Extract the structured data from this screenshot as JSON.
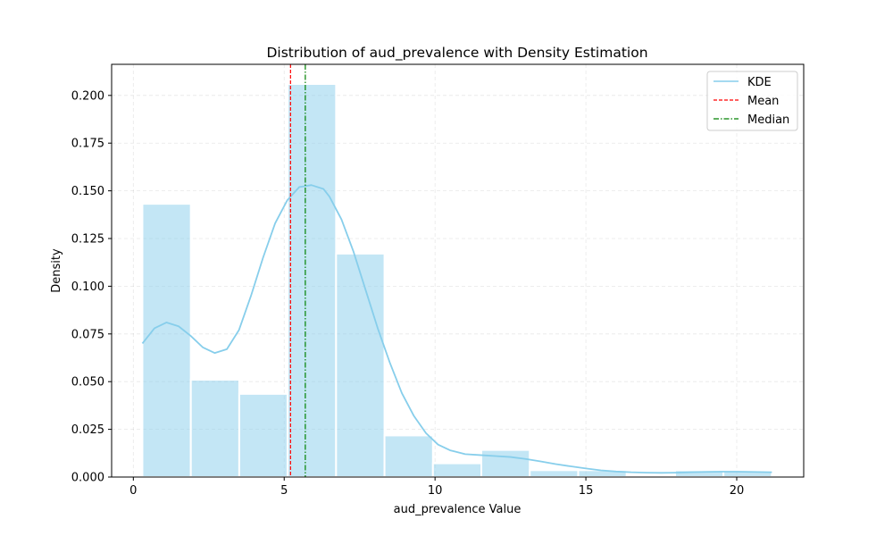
{
  "chart_data": {
    "type": "bar",
    "title": "Distribution of aud_prevalence with Density Estimation",
    "xlabel": "aud_prevalence Value",
    "ylabel": "Density",
    "xlim": [
      -0.72,
      22.22
    ],
    "ylim": [
      0,
      0.2163
    ],
    "xticks": [
      0,
      5,
      10,
      15,
      20
    ],
    "xtick_labels": [
      "0",
      "5",
      "10",
      "15",
      "20"
    ],
    "yticks": [
      0.0,
      0.025,
      0.05,
      0.075,
      0.1,
      0.125,
      0.15,
      0.175,
      0.2
    ],
    "ytick_labels": [
      "0.000",
      "0.025",
      "0.050",
      "0.075",
      "0.100",
      "0.125",
      "0.150",
      "0.175",
      "0.200"
    ],
    "grid": true,
    "legend_position": "upper-right",
    "histogram": {
      "bin_edges": [
        0.3,
        1.905,
        3.51,
        5.115,
        6.72,
        8.325,
        9.93,
        11.535,
        13.14,
        14.745,
        16.35,
        17.955,
        19.56,
        21.165
      ],
      "densities": [
        0.1432,
        0.051,
        0.0436,
        0.206,
        0.1171,
        0.0218,
        0.0072,
        0.0142,
        0.0036,
        0.0036,
        0.0,
        0.0036,
        0.0032
      ],
      "color": "#87ceeb"
    },
    "series": [
      {
        "name": "KDE",
        "type": "line",
        "color": "#87ceeb",
        "x": [
          0.3,
          0.7,
          1.1,
          1.5,
          1.9,
          2.3,
          2.7,
          3.1,
          3.5,
          3.9,
          4.3,
          4.7,
          5.1,
          5.5,
          5.9,
          6.3,
          6.5,
          6.9,
          7.3,
          7.7,
          8.1,
          8.5,
          8.9,
          9.3,
          9.7,
          10.1,
          10.5,
          11.0,
          11.5,
          12.0,
          12.5,
          13.0,
          13.5,
          14.0,
          14.5,
          15.0,
          15.5,
          16.0,
          16.5,
          17.0,
          17.5,
          18.0,
          18.5,
          19.0,
          19.5,
          20.0,
          20.5,
          21.165
        ],
        "y": [
          0.07,
          0.078,
          0.081,
          0.079,
          0.074,
          0.068,
          0.065,
          0.067,
          0.077,
          0.095,
          0.115,
          0.133,
          0.145,
          0.152,
          0.153,
          0.151,
          0.147,
          0.135,
          0.118,
          0.098,
          0.078,
          0.06,
          0.044,
          0.032,
          0.023,
          0.017,
          0.014,
          0.012,
          0.0115,
          0.011,
          0.0105,
          0.0095,
          0.0082,
          0.0068,
          0.0056,
          0.0045,
          0.0035,
          0.0029,
          0.0025,
          0.0023,
          0.0022,
          0.0023,
          0.0025,
          0.0027,
          0.0028,
          0.0028,
          0.0027,
          0.0025
        ]
      },
      {
        "name": "Mean",
        "type": "vline",
        "x": 5.21,
        "color": "#ff0000",
        "dash": "dashed"
      },
      {
        "name": "Median",
        "type": "vline",
        "x": 5.7,
        "color": "#008000",
        "dash": "dashdot"
      }
    ]
  }
}
